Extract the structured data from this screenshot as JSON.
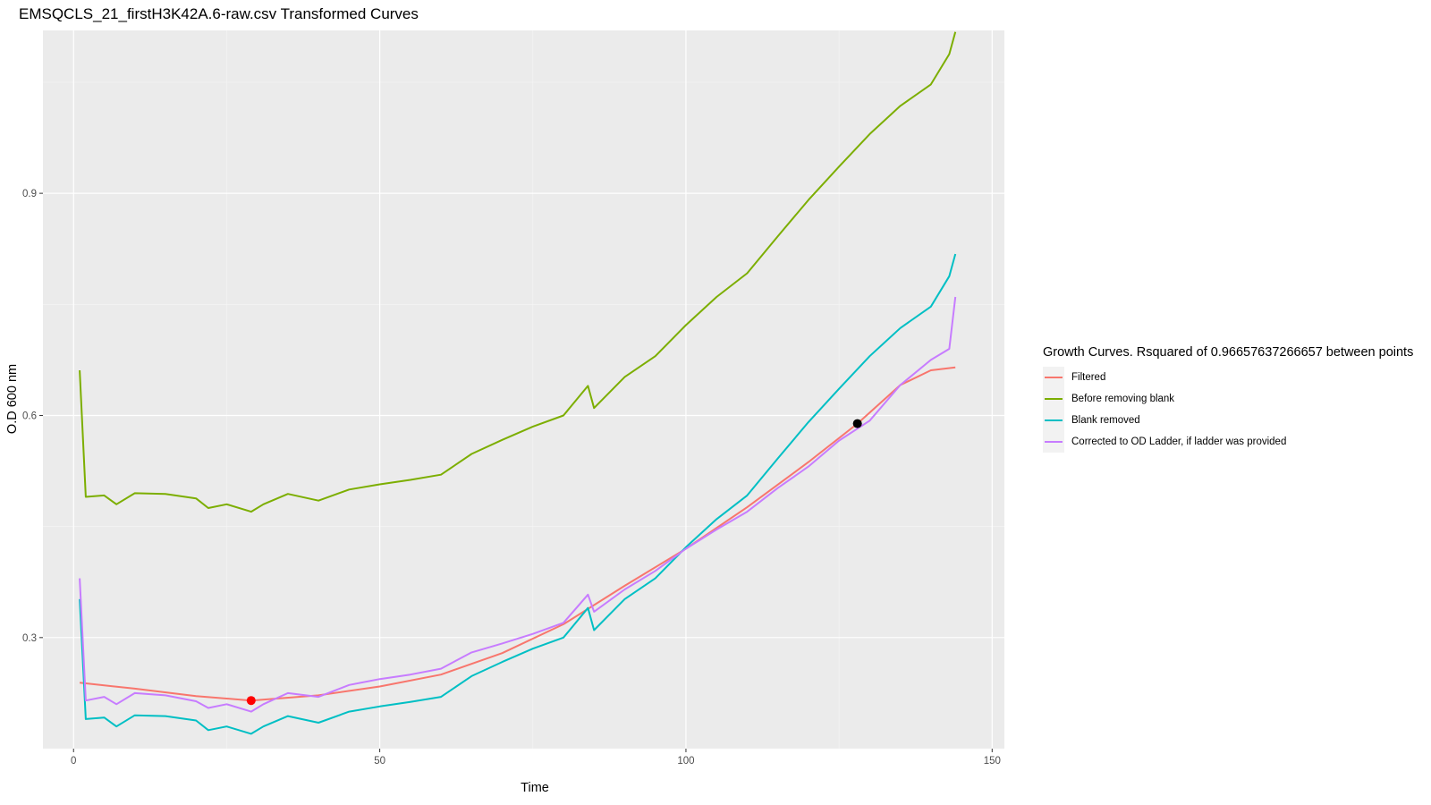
{
  "chart_data": {
    "type": "line",
    "title": "EMSQCLS_21_firstH3K42A.6-raw.csv Transformed Curves",
    "xlabel": "Time",
    "ylabel": "O.D 600 nm",
    "xlim": [
      -5,
      152
    ],
    "ylim": [
      0.15,
      1.12
    ],
    "x_ticks": [
      0,
      50,
      100,
      150
    ],
    "x_tick_labels": [
      "0",
      "50",
      "100",
      "150"
    ],
    "y_ticks": [
      0.3,
      0.6,
      0.9
    ],
    "y_tick_labels": [
      "0.3",
      "0.6",
      "0.9"
    ],
    "grid": true,
    "legend_position": "right",
    "legend_title": "Growth Curves. Rsquared of 0.96657637266657 between points",
    "series": [
      {
        "name": "Filtered",
        "color": "#f8766d",
        "x": [
          1,
          10,
          20,
          29,
          40,
          50,
          60,
          70,
          80,
          90,
          100,
          110,
          120,
          128,
          135,
          140,
          144
        ],
        "values": [
          0.239,
          0.231,
          0.221,
          0.215,
          0.222,
          0.234,
          0.25,
          0.279,
          0.318,
          0.37,
          0.42,
          0.476,
          0.537,
          0.589,
          0.641,
          0.661,
          0.665
        ]
      },
      {
        "name": "Before removing blank",
        "color": "#7cae00",
        "x": [
          1,
          2,
          5,
          7,
          10,
          15,
          20,
          22,
          25,
          29,
          31,
          35,
          40,
          45,
          50,
          55,
          60,
          65,
          70,
          75,
          80,
          84,
          85,
          90,
          95,
          100,
          105,
          110,
          115,
          120,
          125,
          130,
          135,
          140,
          143,
          144
        ],
        "values": [
          0.661,
          0.49,
          0.492,
          0.48,
          0.495,
          0.494,
          0.488,
          0.475,
          0.48,
          0.47,
          0.48,
          0.494,
          0.485,
          0.5,
          0.507,
          0.513,
          0.52,
          0.548,
          0.567,
          0.585,
          0.6,
          0.64,
          0.61,
          0.652,
          0.68,
          0.722,
          0.76,
          0.792,
          0.842,
          0.891,
          0.936,
          0.98,
          1.018,
          1.047,
          1.088,
          1.118
        ]
      },
      {
        "name": "Blank removed",
        "color": "#00bfc4",
        "x": [
          1,
          2,
          5,
          7,
          10,
          15,
          20,
          22,
          25,
          29,
          31,
          35,
          40,
          45,
          50,
          55,
          60,
          65,
          70,
          75,
          80,
          84,
          85,
          90,
          95,
          100,
          105,
          110,
          115,
          120,
          125,
          130,
          135,
          140,
          143,
          144
        ],
        "values": [
          0.352,
          0.19,
          0.192,
          0.18,
          0.195,
          0.194,
          0.188,
          0.175,
          0.18,
          0.17,
          0.18,
          0.194,
          0.185,
          0.2,
          0.207,
          0.213,
          0.22,
          0.248,
          0.267,
          0.285,
          0.3,
          0.34,
          0.31,
          0.352,
          0.38,
          0.422,
          0.46,
          0.492,
          0.542,
          0.591,
          0.636,
          0.68,
          0.718,
          0.747,
          0.788,
          0.818
        ]
      },
      {
        "name": "Corrected to OD Ladder, if ladder was provided",
        "color": "#c77cff",
        "x": [
          1,
          2,
          5,
          7,
          10,
          15,
          20,
          22,
          25,
          29,
          31,
          35,
          40,
          45,
          50,
          55,
          60,
          65,
          70,
          75,
          80,
          84,
          85,
          90,
          95,
          100,
          105,
          110,
          115,
          120,
          125,
          130,
          135,
          140,
          143,
          144
        ],
        "values": [
          0.38,
          0.215,
          0.22,
          0.21,
          0.225,
          0.222,
          0.214,
          0.205,
          0.21,
          0.2,
          0.21,
          0.225,
          0.22,
          0.236,
          0.244,
          0.25,
          0.258,
          0.28,
          0.292,
          0.305,
          0.32,
          0.358,
          0.335,
          0.365,
          0.39,
          0.42,
          0.446,
          0.47,
          0.502,
          0.531,
          0.566,
          0.593,
          0.641,
          0.675,
          0.69,
          0.76
        ]
      }
    ],
    "points": [
      {
        "x": 29,
        "y": 0.215,
        "color": "#ff0000"
      },
      {
        "x": 128,
        "y": 0.589,
        "color": "#000000"
      }
    ]
  }
}
